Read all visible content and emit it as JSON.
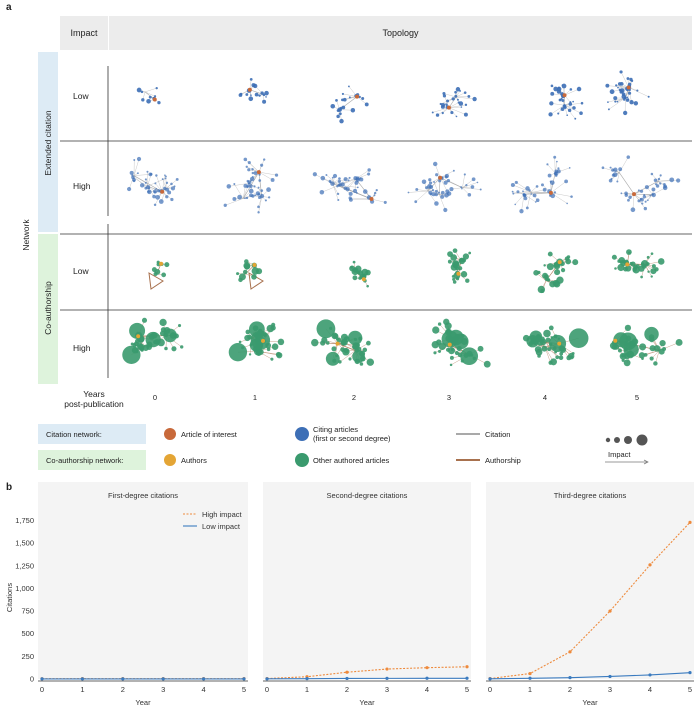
{
  "panel_a": {
    "label": "a",
    "header_impact": "Impact",
    "header_topology": "Topology",
    "network_label": "Network",
    "sections": [
      {
        "name": "Extended citation",
        "rows": [
          "Low",
          "High"
        ]
      },
      {
        "name": "Co-authorship",
        "rows": [
          "Low",
          "High"
        ]
      }
    ],
    "years_label_1": "Years",
    "years_label_2": "post-publication",
    "years": [
      "0",
      "1",
      "2",
      "3",
      "4",
      "5"
    ]
  },
  "legend": {
    "citation_network": "Citation network:",
    "coauthorship_network": "Co-authorship network:",
    "article_of_interest": "Article of interest",
    "citing_articles_1": "Citing articles",
    "citing_articles_2": "(first or second degree)",
    "citation": "Citation",
    "authors": "Authors",
    "other_authored": "Other authored articles",
    "authorship": "Authorship",
    "impact": "Impact"
  },
  "colors": {
    "citation_blue": "#3d6fb6",
    "coauthor_green": "#3a9a6e",
    "article_orange": "#c8693a",
    "author_yellow": "#e4a535",
    "authorship_brown": "#a8714e",
    "citation_grey": "#a9a9a9",
    "band_blue": "#ddebf5",
    "band_green": "#def3dc",
    "high_line": "#ee8a3c",
    "low_line": "#3b7bbf"
  },
  "panel_b": {
    "label": "b",
    "legend_high": "High impact",
    "legend_low": "Low impact"
  },
  "chart_data": [
    {
      "type": "line",
      "title": "First-degree citations",
      "xlabel": "Year",
      "ylabel": "Citations",
      "x": [
        0,
        1,
        2,
        3,
        4,
        5
      ],
      "xlim": [
        0,
        5
      ],
      "ylim": [
        0,
        1800
      ],
      "yticks": [
        0,
        250,
        500,
        750,
        1000,
        1250,
        1500,
        1750
      ],
      "ytick_labels": [
        "0",
        "250",
        "500",
        "750",
        "1,000",
        "1,250",
        "1,500",
        "1,750"
      ],
      "series": [
        {
          "name": "High impact",
          "values": [
            3,
            4,
            4,
            4,
            4,
            4
          ]
        },
        {
          "name": "Low impact",
          "values": [
            1,
            1,
            1,
            1,
            1,
            1
          ]
        }
      ]
    },
    {
      "type": "line",
      "title": "Second-degree citations",
      "xlabel": "Year",
      "ylabel": "",
      "x": [
        0,
        1,
        2,
        3,
        4,
        5
      ],
      "xlim": [
        0,
        5
      ],
      "ylim": [
        0,
        1800
      ],
      "series": [
        {
          "name": "High impact",
          "values": [
            5,
            25,
            75,
            110,
            125,
            135
          ]
        },
        {
          "name": "Low impact",
          "values": [
            2,
            4,
            6,
            7,
            8,
            8
          ]
        }
      ]
    },
    {
      "type": "line",
      "title": "Third-degree citations",
      "xlabel": "Year",
      "ylabel": "",
      "x": [
        0,
        1,
        2,
        3,
        4,
        5
      ],
      "xlim": [
        0,
        5
      ],
      "ylim": [
        0,
        1800
      ],
      "series": [
        {
          "name": "High impact",
          "values": [
            5,
            60,
            300,
            750,
            1260,
            1730
          ]
        },
        {
          "name": "Low impact",
          "values": [
            2,
            8,
            15,
            28,
            45,
            70
          ]
        }
      ]
    }
  ]
}
